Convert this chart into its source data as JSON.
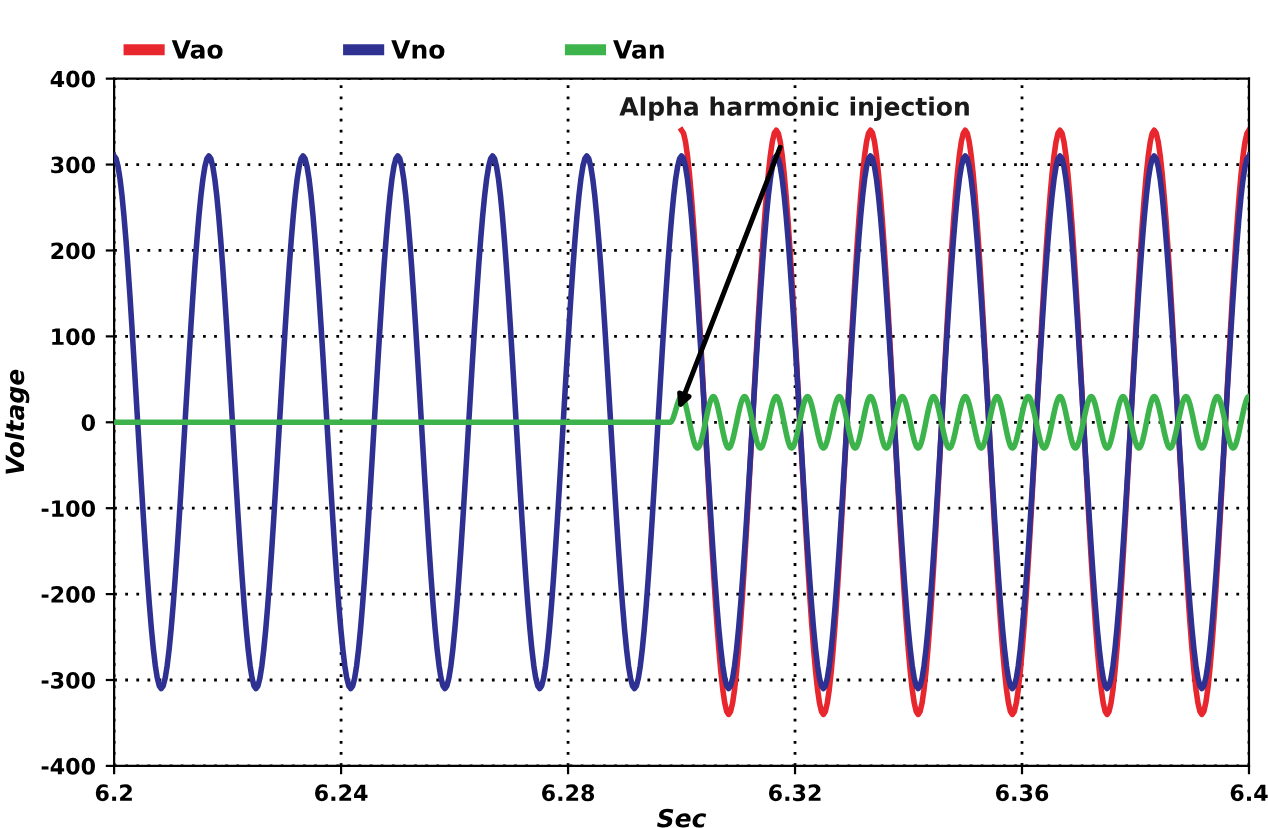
{
  "chart_data": {
    "type": "line",
    "xlabel": "Sec",
    "ylabel": "Voltage",
    "xlim": [
      6.2,
      6.4
    ],
    "xticks": [
      6.2,
      6.24,
      6.28,
      6.32,
      6.36,
      6.4
    ],
    "ylim": [
      -400,
      400
    ],
    "yticks": [
      -400,
      -300,
      -200,
      -100,
      0,
      100,
      200,
      300,
      400
    ],
    "grid": true,
    "legend": "top left",
    "marker": "none",
    "line_style": "solid",
    "annotations": [
      {
        "text": "Alpha harmonic injection",
        "x": 6.2995,
        "y": 15
      }
    ],
    "series": [
      {
        "name": "Vao",
        "color": "#e8262d",
        "x": [
          6.3,
          6.3083,
          6.3167,
          6.325,
          6.3333,
          6.3417,
          6.35,
          6.3583,
          6.3667,
          6.375,
          6.3833,
          6.3917,
          6.4
        ],
        "values": [
          340,
          -340,
          340,
          -340,
          340,
          -340,
          340,
          -340,
          340,
          -340,
          340,
          -340,
          340
        ]
      },
      {
        "name": "Vno",
        "color": "#2e3192",
        "x": [
          6.2,
          6.2083,
          6.2167,
          6.225,
          6.2333,
          6.2417,
          6.25,
          6.2583,
          6.2667,
          6.275,
          6.2833,
          6.2917,
          6.3,
          6.3083,
          6.3167,
          6.325,
          6.3333,
          6.3417,
          6.35,
          6.3583,
          6.3667,
          6.375,
          6.3833,
          6.3917,
          6.4
        ],
        "values": [
          310,
          -310,
          310,
          -310,
          310,
          -310,
          310,
          -310,
          310,
          -310,
          310,
          -310,
          310,
          -310,
          310,
          -310,
          310,
          -310,
          310,
          -310,
          310,
          -310,
          310,
          -310,
          310
        ]
      },
      {
        "name": "Van",
        "color": "#3cb44b",
        "x": [
          6.2,
          6.298,
          6.3,
          6.3028,
          6.3056,
          6.3083,
          6.3111,
          6.3139,
          6.3167,
          6.3194,
          6.3222,
          6.325,
          6.3278,
          6.3306,
          6.3333,
          6.3361,
          6.3389,
          6.3417,
          6.3444,
          6.3472,
          6.35,
          6.3528,
          6.3556,
          6.3583,
          6.3611,
          6.3639,
          6.3667,
          6.3694,
          6.3722,
          6.375,
          6.3778,
          6.3806,
          6.3833,
          6.3861,
          6.3889,
          6.3917,
          6.3944,
          6.3972,
          6.4
        ],
        "values": [
          0,
          0,
          30,
          -30,
          30,
          -30,
          30,
          -30,
          30,
          -30,
          30,
          -30,
          30,
          -30,
          30,
          -30,
          30,
          -30,
          30,
          -30,
          30,
          -30,
          30,
          -30,
          30,
          -30,
          30,
          -30,
          30,
          -30,
          30,
          -30,
          30,
          -30,
          30,
          -30,
          30,
          -30,
          30
        ]
      }
    ]
  }
}
